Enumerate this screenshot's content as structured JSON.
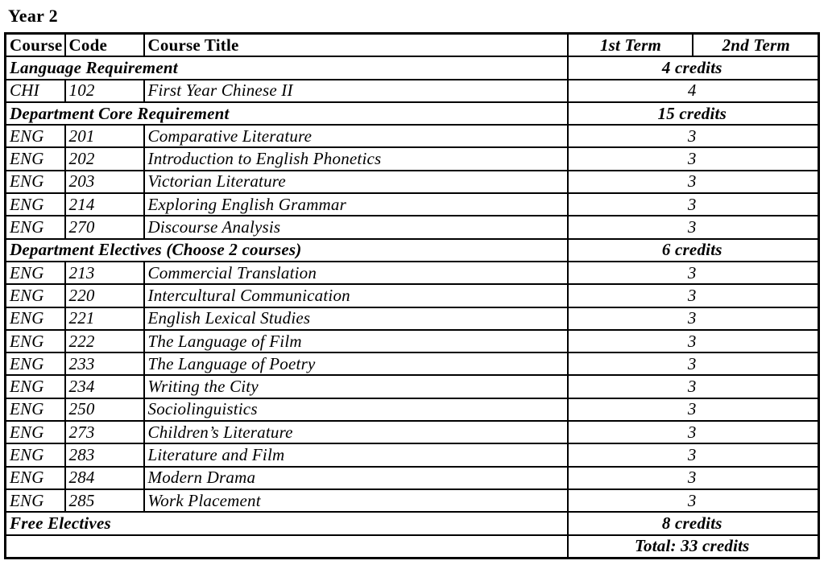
{
  "page_title": "Year 2",
  "colors": {
    "background": "#ffffff",
    "text": "#000000",
    "border": "#000000"
  },
  "table": {
    "headers": {
      "course": "Course",
      "code": "Code",
      "title": "Course Title",
      "term1": "1st Term",
      "term2": "2nd Term"
    },
    "rows": [
      {
        "type": "section",
        "label": "Language Requirement",
        "credits": "4 credits"
      },
      {
        "type": "course",
        "course": "CHI",
        "code": "102",
        "title": "First Year Chinese II",
        "value": "4"
      },
      {
        "type": "section",
        "label": "Department Core Requirement",
        "credits": "15 credits"
      },
      {
        "type": "course",
        "course": "ENG",
        "code": "201",
        "title": "Comparative Literature",
        "value": "3"
      },
      {
        "type": "course",
        "course": "ENG",
        "code": "202",
        "title": "Introduction to English Phonetics",
        "value": "3"
      },
      {
        "type": "course",
        "course": "ENG",
        "code": "203",
        "title": "Victorian Literature",
        "value": "3"
      },
      {
        "type": "course",
        "course": "ENG",
        "code": "214",
        "title": "Exploring English Grammar",
        "value": "3"
      },
      {
        "type": "course",
        "course": "ENG",
        "code": "270",
        "title": "Discourse Analysis",
        "value": "3"
      },
      {
        "type": "section",
        "label": "Department Electives (Choose 2 courses)",
        "credits": "6 credits"
      },
      {
        "type": "course",
        "course": "ENG",
        "code": "213",
        "title": "Commercial Translation",
        "value": "3"
      },
      {
        "type": "course",
        "course": "ENG",
        "code": "220",
        "title": "Intercultural Communication",
        "value": "3"
      },
      {
        "type": "course",
        "course": "ENG",
        "code": "221",
        "title": "English Lexical Studies",
        "value": "3"
      },
      {
        "type": "course",
        "course": "ENG",
        "code": "222",
        "title": "The Language of Film",
        "value": "3"
      },
      {
        "type": "course",
        "course": "ENG",
        "code": "233",
        "title": "The Language of Poetry",
        "value": "3"
      },
      {
        "type": "course",
        "course": "ENG",
        "code": "234",
        "title": "Writing the City",
        "value": "3"
      },
      {
        "type": "course",
        "course": "ENG",
        "code": "250",
        "title": "Sociolinguistics",
        "value": "3"
      },
      {
        "type": "course",
        "course": "ENG",
        "code": "273",
        "title": "Children’s Literature",
        "value": "3"
      },
      {
        "type": "course",
        "course": "ENG",
        "code": "283",
        "title": "Literature and Film",
        "value": "3"
      },
      {
        "type": "course",
        "course": "ENG",
        "code": "284",
        "title": "Modern Drama",
        "value": "3"
      },
      {
        "type": "course",
        "course": "ENG",
        "code": "285",
        "title": "Work Placement",
        "value": "3"
      },
      {
        "type": "section",
        "label": "Free Electives",
        "credits": "8 credits"
      },
      {
        "type": "total",
        "label": "",
        "credits": "Total: 33 credits"
      }
    ]
  }
}
